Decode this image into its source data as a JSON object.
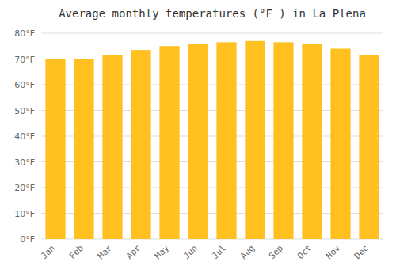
{
  "chart_data": {
    "type": "bar",
    "title": "Average monthly temperatures (°F ) in La Plena",
    "categories": [
      "Jan",
      "Feb",
      "Mar",
      "Apr",
      "May",
      "Jun",
      "Jul",
      "Aug",
      "Sep",
      "Oct",
      "Nov",
      "Dec"
    ],
    "values": [
      70,
      70,
      71.5,
      73.5,
      75,
      76,
      76.5,
      77,
      76.5,
      76,
      74,
      71.5
    ],
    "color": "#FFC020",
    "ylim": [
      0,
      80
    ],
    "yticks": [
      {
        "value": 0,
        "label": "0°F"
      },
      {
        "value": 10,
        "label": "10°F"
      },
      {
        "value": 20,
        "label": "20°F"
      },
      {
        "value": 30,
        "label": "30°F"
      },
      {
        "value": 40,
        "label": "40°F"
      },
      {
        "value": 50,
        "label": "50°F"
      },
      {
        "value": 60,
        "label": "60°F"
      },
      {
        "value": 70,
        "label": "70°F"
      },
      {
        "value": 80,
        "label": "80°F"
      }
    ],
    "grid": true
  }
}
